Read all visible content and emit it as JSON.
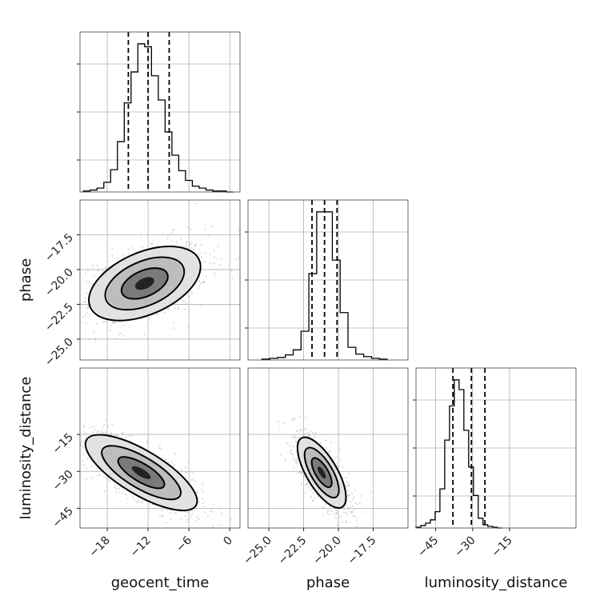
{
  "chart_data": {
    "type": "corner",
    "parameters": [
      {
        "key": "geocent_time",
        "label": "geocent_time",
        "range": [
          -22,
          1.5
        ],
        "ticks": [
          {
            "v": -18,
            "label": "−18"
          },
          {
            "v": -12,
            "label": "−12"
          },
          {
            "v": -6,
            "label": "−6"
          },
          {
            "v": 0,
            "label": "0"
          }
        ],
        "quantiles": [
          -14.9,
          -12.0,
          -8.9
        ],
        "hist_bins": [
          -21.5,
          0.5
        ],
        "hist_counts": [
          1,
          2,
          4,
          10,
          23,
          52,
          92,
          124,
          153,
          150,
          120,
          95,
          62,
          38,
          22,
          12,
          6,
          4,
          2,
          1,
          1,
          0
        ]
      },
      {
        "key": "phase",
        "label": "phase",
        "range": [
          -26.5,
          -15.0
        ],
        "ticks": [
          {
            "v": -25.0,
            "label": "−25.0"
          },
          {
            "v": -22.5,
            "label": "−22.5"
          },
          {
            "v": -20.0,
            "label": "−20.0"
          },
          {
            "v": -17.5,
            "label": "−17.5"
          }
        ],
        "quantiles": [
          -21.9,
          -21.0,
          -20.1
        ],
        "hist_bins": [
          -25.5,
          -16.5
        ],
        "hist_counts": [
          1,
          2,
          3,
          6,
          12,
          34,
          102,
          175,
          175,
          118,
          56,
          15,
          7,
          4,
          2,
          1
        ]
      },
      {
        "key": "luminosity_distance",
        "label": "luminosity_distance",
        "range": [
          -53,
          12
        ],
        "ticks": [
          {
            "v": -45,
            "label": "−45"
          },
          {
            "v": -30,
            "label": "−30"
          },
          {
            "v": -15,
            "label": "−15"
          }
        ],
        "quantiles": [
          -38.0,
          -30.5,
          -25.0
        ],
        "hist_bins": [
          -53,
          -18
        ],
        "hist_counts": [
          1,
          3,
          6,
          10,
          20,
          48,
          108,
          150,
          182,
          170,
          120,
          75,
          40,
          12,
          4,
          2,
          1,
          0
        ]
      }
    ],
    "density": {
      "phase_vs_geocent_time": {
        "center": [
          -12.5,
          -21.0
        ],
        "sigma": [
          4.0,
          1.3
        ],
        "rho": 0.45
      },
      "luminosity_distance_vs_geocent_time": {
        "center": [
          -13.0,
          -30.5
        ],
        "sigma": [
          4.0,
          7.5
        ],
        "rho": -0.75
      },
      "luminosity_distance_vs_phase": {
        "center": [
          -21.2,
          -30.5
        ],
        "sigma": [
          0.85,
          7.0
        ],
        "rho": -0.7
      }
    },
    "grid": true,
    "contour_levels": 3
  }
}
